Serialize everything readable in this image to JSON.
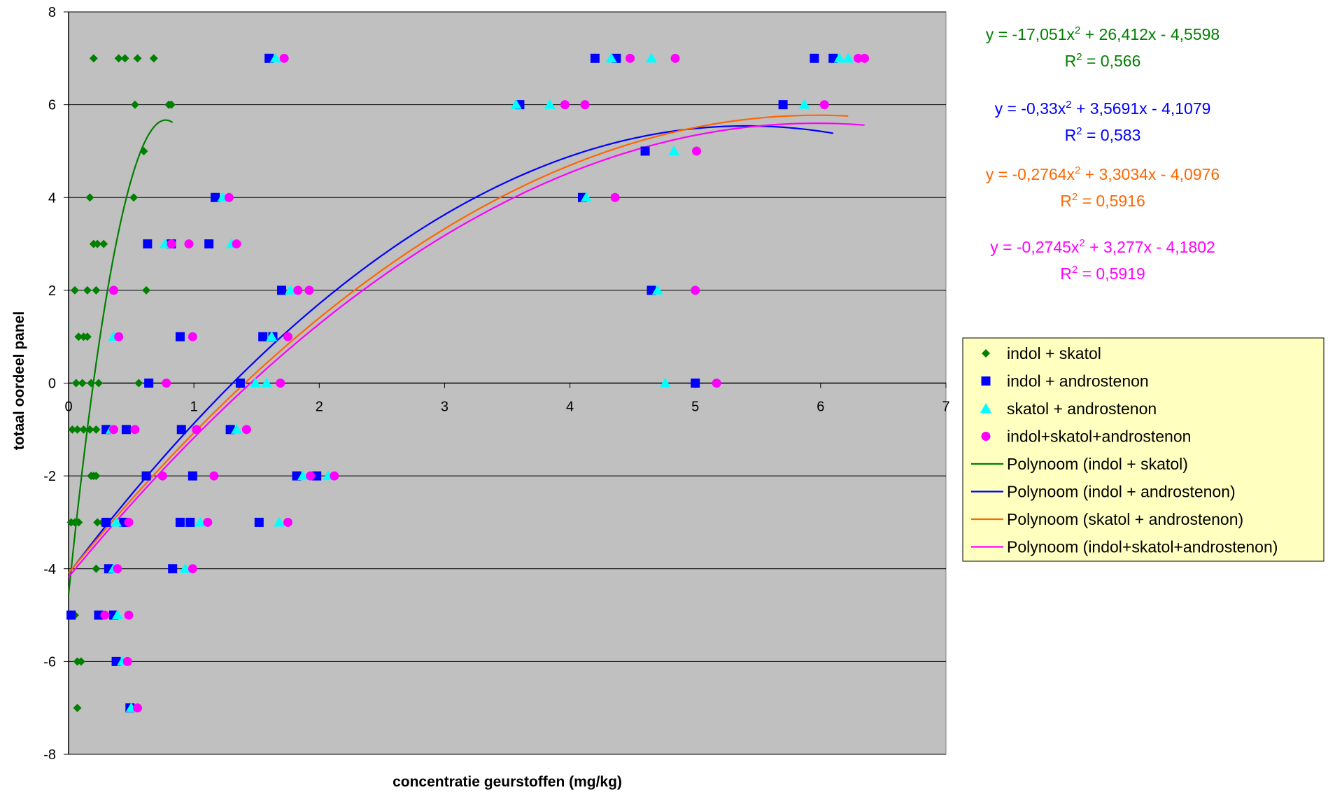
{
  "chart_data": {
    "type": "scatter",
    "xlabel": "concentratie geurstoffen (mg/kg)",
    "ylabel": "totaal oordeel panel",
    "xlim": [
      0,
      7
    ],
    "ylim": [
      -8,
      8
    ],
    "x_ticks": [
      "0",
      "1",
      "2",
      "3",
      "4",
      "5",
      "6",
      "7"
    ],
    "y_ticks": [
      "-8",
      "-6",
      "-4",
      "-2",
      "0",
      "2",
      "4",
      "6",
      "8"
    ],
    "grid": "horizontal",
    "plot_background": "#c0c0c0",
    "legend_position": "right",
    "series": [
      {
        "name": "indol + skatol",
        "marker": "diamond",
        "color": "#008000",
        "points": [
          [
            0.2,
            7
          ],
          [
            0.4,
            7
          ],
          [
            0.45,
            7
          ],
          [
            0.55,
            7
          ],
          [
            0.68,
            7
          ],
          [
            0.53,
            6
          ],
          [
            0.8,
            6
          ],
          [
            0.82,
            6
          ],
          [
            0.6,
            5
          ],
          [
            0.17,
            4
          ],
          [
            0.52,
            4
          ],
          [
            0.2,
            3
          ],
          [
            0.23,
            3
          ],
          [
            0.28,
            3
          ],
          [
            0.05,
            2
          ],
          [
            0.15,
            2
          ],
          [
            0.22,
            2
          ],
          [
            0.62,
            2
          ],
          [
            0.08,
            1
          ],
          [
            0.12,
            1
          ],
          [
            0.15,
            1
          ],
          [
            0.06,
            0
          ],
          [
            0.11,
            0
          ],
          [
            0.18,
            0
          ],
          [
            0.24,
            0
          ],
          [
            0.56,
            0
          ],
          [
            0.03,
            -1
          ],
          [
            0.07,
            -1
          ],
          [
            0.12,
            -1
          ],
          [
            0.17,
            -1
          ],
          [
            0.22,
            -1
          ],
          [
            0.18,
            -2
          ],
          [
            0.2,
            -2
          ],
          [
            0.22,
            -2
          ],
          [
            0.02,
            -3
          ],
          [
            0.05,
            -3
          ],
          [
            0.08,
            -3
          ],
          [
            0.23,
            -3
          ],
          [
            0.27,
            -3
          ],
          [
            0.22,
            -4
          ],
          [
            0.05,
            -5
          ],
          [
            0.07,
            -6
          ],
          [
            0.1,
            -6
          ],
          [
            0.07,
            -7
          ]
        ]
      },
      {
        "name": "indol + androstenon",
        "marker": "square",
        "color": "#0000ff",
        "points": [
          [
            1.6,
            7
          ],
          [
            4.2,
            7
          ],
          [
            4.37,
            7
          ],
          [
            5.95,
            7
          ],
          [
            6.1,
            7
          ],
          [
            3.6,
            6
          ],
          [
            5.7,
            6
          ],
          [
            4.6,
            5
          ],
          [
            1.17,
            4
          ],
          [
            4.1,
            4
          ],
          [
            0.63,
            3
          ],
          [
            0.82,
            3
          ],
          [
            1.12,
            3
          ],
          [
            1.7,
            2
          ],
          [
            4.65,
            2
          ],
          [
            0.89,
            1
          ],
          [
            1.55,
            1
          ],
          [
            1.63,
            1
          ],
          [
            0.64,
            0
          ],
          [
            1.37,
            0
          ],
          [
            5.0,
            0
          ],
          [
            0.3,
            -1
          ],
          [
            0.46,
            -1
          ],
          [
            0.9,
            -1
          ],
          [
            1.29,
            -1
          ],
          [
            0.62,
            -2
          ],
          [
            0.99,
            -2
          ],
          [
            1.82,
            -2
          ],
          [
            1.98,
            -2
          ],
          [
            0.3,
            -3
          ],
          [
            0.44,
            -3
          ],
          [
            0.89,
            -3
          ],
          [
            0.97,
            -3
          ],
          [
            1.52,
            -3
          ],
          [
            0.32,
            -4
          ],
          [
            0.83,
            -4
          ],
          [
            0.02,
            -5
          ],
          [
            0.24,
            -5
          ],
          [
            0.36,
            -5
          ],
          [
            0.38,
            -6
          ],
          [
            0.49,
            -7
          ]
        ]
      },
      {
        "name": "skatol + androstenon",
        "marker": "triangle",
        "color": "#00ffff",
        "points": [
          [
            1.65,
            7
          ],
          [
            4.33,
            7
          ],
          [
            4.65,
            7
          ],
          [
            6.15,
            7
          ],
          [
            6.22,
            7
          ],
          [
            3.57,
            6
          ],
          [
            3.84,
            6
          ],
          [
            5.87,
            6
          ],
          [
            4.83,
            5
          ],
          [
            1.23,
            4
          ],
          [
            4.13,
            4
          ],
          [
            0.77,
            3
          ],
          [
            1.3,
            3
          ],
          [
            1.77,
            2
          ],
          [
            4.7,
            2
          ],
          [
            0.36,
            1
          ],
          [
            1.62,
            1
          ],
          [
            1.49,
            0
          ],
          [
            1.58,
            0
          ],
          [
            4.76,
            0
          ],
          [
            0.34,
            -1
          ],
          [
            1.34,
            -1
          ],
          [
            1.87,
            -2
          ],
          [
            2.07,
            -2
          ],
          [
            0.38,
            -3
          ],
          [
            1.05,
            -3
          ],
          [
            1.68,
            -3
          ],
          [
            0.36,
            -4
          ],
          [
            0.93,
            -4
          ],
          [
            0.39,
            -5
          ],
          [
            0.43,
            -6
          ],
          [
            0.5,
            -7
          ]
        ]
      },
      {
        "name": "indol+skatol+androstenon",
        "marker": "circle",
        "color": "#ff00ff",
        "points": [
          [
            1.72,
            7
          ],
          [
            4.48,
            7
          ],
          [
            4.84,
            7
          ],
          [
            6.3,
            7
          ],
          [
            6.35,
            7
          ],
          [
            3.96,
            6
          ],
          [
            4.12,
            6
          ],
          [
            6.03,
            6
          ],
          [
            5.01,
            5
          ],
          [
            1.28,
            4
          ],
          [
            4.36,
            4
          ],
          [
            0.82,
            3
          ],
          [
            0.96,
            3
          ],
          [
            1.34,
            3
          ],
          [
            0.36,
            2
          ],
          [
            1.83,
            2
          ],
          [
            1.92,
            2
          ],
          [
            5.0,
            2
          ],
          [
            0.4,
            1
          ],
          [
            0.99,
            1
          ],
          [
            1.75,
            1
          ],
          [
            0.78,
            0
          ],
          [
            1.69,
            0
          ],
          [
            5.17,
            0
          ],
          [
            0.36,
            -1
          ],
          [
            0.53,
            -1
          ],
          [
            1.02,
            -1
          ],
          [
            1.42,
            -1
          ],
          [
            0.75,
            -2
          ],
          [
            1.16,
            -2
          ],
          [
            1.93,
            -2
          ],
          [
            2.12,
            -2
          ],
          [
            0.48,
            -3
          ],
          [
            1.11,
            -3
          ],
          [
            1.75,
            -3
          ],
          [
            0.39,
            -4
          ],
          [
            0.99,
            -4
          ],
          [
            0.29,
            -5
          ],
          [
            0.48,
            -5
          ],
          [
            0.47,
            -6
          ],
          [
            0.55,
            -7
          ]
        ]
      }
    ],
    "trendlines": [
      {
        "name": "Polynoom (indol + skatol)",
        "color": "#008000",
        "coefficients": [
          -17.051,
          26.412,
          -4.5598
        ],
        "x_range": [
          0,
          0.83
        ],
        "equation": "y = -17,051x² + 26,412x - 4,5598",
        "r2": "R² = 0,566"
      },
      {
        "name": "Polynoom (indol + androstenon)",
        "color": "#0000ff",
        "coefficients": [
          -0.33,
          3.5691,
          -4.1079
        ],
        "x_range": [
          0,
          6.1
        ],
        "equation": "y = -0,33x² + 3,5691x - 4,1079",
        "r2": "R² = 0,583"
      },
      {
        "name": "Polynoom (skatol + androstenon)",
        "color": "#ff6600",
        "coefficients": [
          -0.2764,
          3.3034,
          -4.0976
        ],
        "x_range": [
          0,
          6.22
        ],
        "equation": "y = -0,2764x² + 3,3034x - 4,0976",
        "r2": "R² = 0,5916"
      },
      {
        "name": "Polynoom (indol+skatol+androstenon)",
        "color": "#ff00ff",
        "coefficients": [
          -0.2745,
          3.277,
          -4.1802
        ],
        "x_range": [
          0,
          6.35
        ],
        "equation": "y = -0,2745x² + 3,277x - 4,1802",
        "r2": "R² = 0,5919"
      }
    ]
  }
}
